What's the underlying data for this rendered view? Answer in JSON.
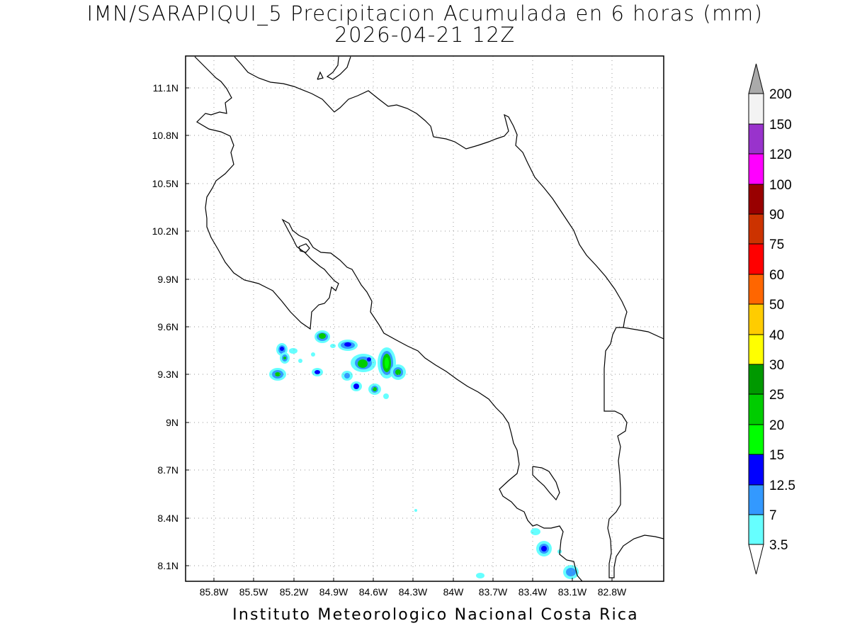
{
  "title": {
    "line1": "IMN/SARAPIQUI_5 Precipitacion Acumulada en 6 horas (mm)",
    "line2": "2026-04-21 12Z"
  },
  "footer": "Instituto Meteorologico Nacional Costa Rica",
  "map": {
    "lat_ticks": [
      "11.1N",
      "10.8N",
      "10.5N",
      "10.2N",
      "9.9N",
      "9.6N",
      "9.3N",
      "9N",
      "8.7N",
      "8.4N",
      "8.1N"
    ],
    "lon_ticks": [
      "85.8W",
      "85.5W",
      "85.2W",
      "84.9W",
      "84.6W",
      "84.3W",
      "84W",
      "83.7W",
      "83.4W",
      "83.1W",
      "82.8W"
    ],
    "grid": true
  },
  "colorbar": {
    "labels": [
      "3.5",
      "7",
      "12.5",
      "15",
      "20",
      "25",
      "30",
      "40",
      "50",
      "60",
      "75",
      "90",
      "100",
      "120",
      "150",
      "200"
    ],
    "colors": [
      "#ffffff",
      "#66ffff",
      "#3399ff",
      "#0000ff",
      "#00ff00",
      "#00cc00",
      "#009900",
      "#ffff00",
      "#ffcc00",
      "#ff6600",
      "#ff0000",
      "#cc3300",
      "#990000",
      "#ff00ff",
      "#9933cc",
      "#f3f3f3",
      "#aaaaaa"
    ]
  },
  "colors": {
    "low": "#66ffff",
    "mid": "#3399ff",
    "high": "#0000ff",
    "green": "#00ff00",
    "dkgreen": "#00cc00"
  }
}
